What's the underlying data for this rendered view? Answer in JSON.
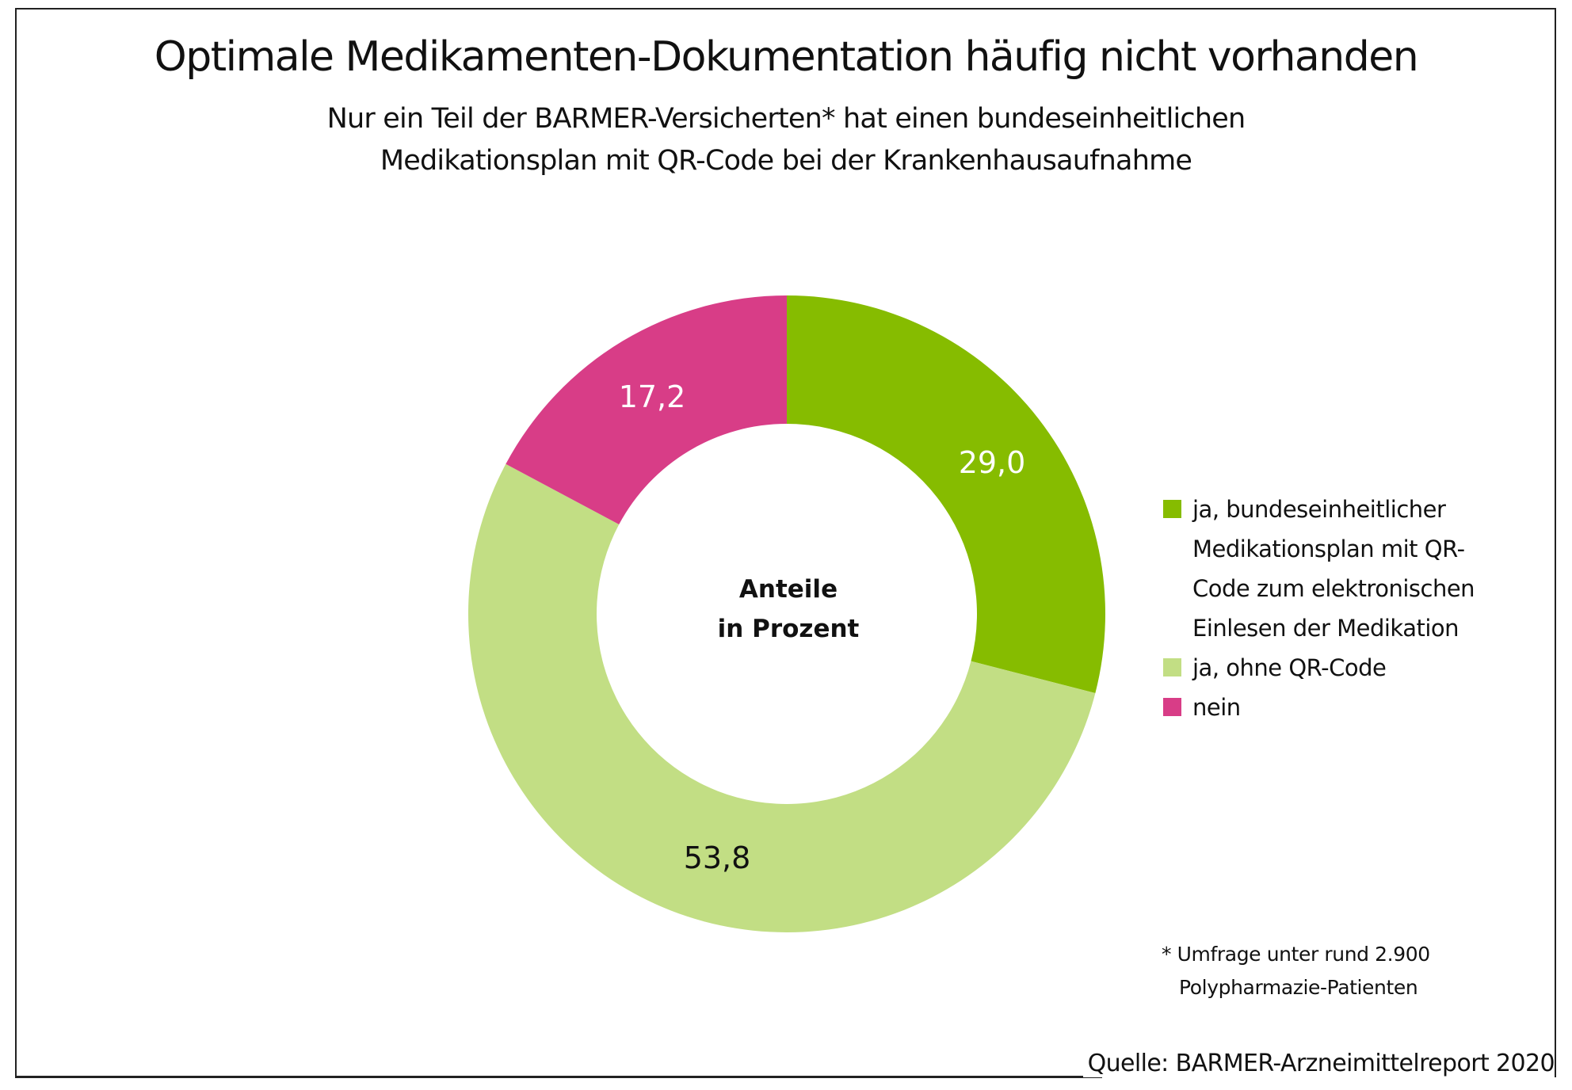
{
  "chart_data": {
    "type": "pie",
    "variant": "donut",
    "title": "Optimale Medikamenten-Dokumentation häufig nicht vorhanden",
    "subtitle": [
      "Nur ein Teil der BARMER-Versicherten* hat einen bundeseinheitlichen",
      "Medikationsplan mit QR-Code bei der Krankenhausaufnahme"
    ],
    "center_label": [
      "Anteile",
      "in Prozent"
    ],
    "legend_position": "right",
    "slices": [
      {
        "name": "ja, bundeseinheitlicher Medikationsplan mit QR-Code zum elektronischen Einlesen der Medikation",
        "legend_lines": [
          "ja, bundeseinheitlicher",
          "Medikationsplan mit QR-",
          "Code zum elektronischen",
          "Einlesen der Medikation"
        ],
        "value": 29.0,
        "label": "29,0",
        "color": "#86bc00",
        "label_color": "#ffffff"
      },
      {
        "name": "ja, ohne QR-Code",
        "legend_lines": [
          "ja, ohne QR-Code"
        ],
        "value": 53.8,
        "label": "53,8",
        "color": "#c2de84",
        "label_color": "#111111"
      },
      {
        "name": "nein",
        "legend_lines": [
          "nein"
        ],
        "value": 17.2,
        "label": "17,2",
        "color": "#d83d87",
        "label_color": "#ffffff"
      }
    ]
  },
  "footnote": [
    "* Umfrage unter rund 2.900",
    "Polypharmazie-Patienten"
  ],
  "source": "Quelle: BARMER-Arzneimittelreport 2020"
}
